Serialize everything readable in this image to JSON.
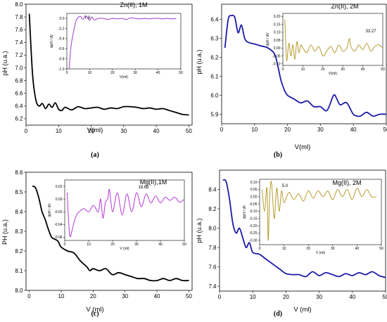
{
  "figure": {
    "labels": [
      "(a)",
      "(b)",
      "(c)",
      "(d)"
    ]
  },
  "chart_data": [
    {
      "type": "line",
      "panel_label": "(a)",
      "annotation": "Zn(II), 1M",
      "xlabel": "V(ml)",
      "ylabel": "pH (u.a.)",
      "xlim": [
        0,
        51
      ],
      "ylim": [
        6.1,
        8.0
      ],
      "xticks": [
        0,
        10,
        20,
        30,
        40,
        50
      ],
      "yticks": [
        6.2,
        6.4,
        6.6,
        6.8,
        7.0,
        7.2,
        7.4,
        7.6,
        7.8,
        8.0
      ],
      "color": "#000000",
      "x": [
        1,
        2,
        3,
        4,
        5,
        6,
        7,
        8,
        9,
        10,
        11,
        12,
        14,
        16,
        18,
        20,
        22,
        24,
        26,
        28,
        30,
        32,
        34,
        36,
        38,
        40,
        42,
        44,
        46,
        48,
        50
      ],
      "y": [
        7.85,
        6.9,
        6.5,
        6.4,
        6.44,
        6.36,
        6.43,
        6.38,
        6.45,
        6.35,
        6.33,
        6.38,
        6.34,
        6.39,
        6.36,
        6.37,
        6.38,
        6.35,
        6.37,
        6.36,
        6.39,
        6.39,
        6.38,
        6.36,
        6.37,
        6.35,
        6.36,
        6.33,
        6.3,
        6.27,
        6.26
      ],
      "inset": {
        "type": "line",
        "xlabel": "V(ml)",
        "ylabel": "dpH / dV",
        "annotation": "7.8",
        "xlim": [
          0,
          50
        ],
        "ylim": [
          -1.0,
          0.1
        ],
        "xticks": [
          0,
          10,
          20,
          30,
          40,
          50
        ],
        "yticks": [
          -1.0,
          -0.8,
          -0.6,
          -0.4,
          -0.2,
          0.0
        ],
        "color": "#a23bd1",
        "x": [
          1,
          1.5,
          2,
          3,
          4,
          5,
          6,
          7,
          8,
          9,
          10,
          11,
          12,
          14,
          16,
          18,
          20,
          22,
          24,
          26,
          28,
          30,
          32,
          34,
          36,
          38,
          40,
          42,
          44,
          46,
          48
        ],
        "y": [
          -1.0,
          -0.7,
          -0.5,
          -0.25,
          -0.05,
          0.02,
          0.04,
          -0.02,
          0.04,
          0.02,
          -0.04,
          0.03,
          -0.03,
          0.0,
          0.0,
          -0.02,
          0.0,
          -0.01,
          0.0,
          -0.02,
          0.01,
          0.0,
          -0.01,
          0.0,
          -0.01,
          0.0,
          0.0,
          -0.01,
          0.0,
          -0.01,
          0.0
        ]
      }
    },
    {
      "type": "line",
      "panel_label": "(b)",
      "annotation": "Zn(II), 2M",
      "xlabel": "V(ml)",
      "ylabel": "pH (u.a.)",
      "xlim": [
        0,
        50
      ],
      "ylim": [
        5.85,
        6.48
      ],
      "xticks": [
        0,
        10,
        20,
        30,
        40,
        50
      ],
      "yticks": [
        5.9,
        6.0,
        6.1,
        6.2,
        6.3,
        6.4
      ],
      "color": "#1a1aa8",
      "x": [
        1,
        2,
        3,
        4,
        5,
        6,
        7,
        8,
        10,
        12,
        14,
        16,
        17,
        18,
        19,
        20,
        22,
        24,
        26,
        28,
        30,
        32,
        34,
        35,
        36,
        38,
        40,
        42,
        44,
        46,
        48,
        50
      ],
      "y": [
        6.25,
        6.4,
        6.42,
        6.41,
        6.33,
        6.37,
        6.3,
        6.28,
        6.27,
        6.26,
        6.25,
        6.22,
        6.16,
        6.08,
        6.03,
        6.0,
        5.98,
        5.96,
        5.97,
        5.94,
        5.94,
        5.92,
        6.0,
        5.98,
        5.95,
        5.96,
        5.9,
        5.89,
        5.91,
        5.89,
        5.9,
        5.9
      ],
      "inset": {
        "type": "line",
        "xlabel": "V(ml)",
        "ylabel": "dpH / dV",
        "annotation": "33.27",
        "xlim": [
          0,
          50
        ],
        "ylim": [
          -0.11,
          0.22
        ],
        "xticks": [
          0,
          10,
          20,
          30,
          40,
          50
        ],
        "yticks": [
          -0.1,
          -0.05,
          0.0,
          0.05,
          0.1,
          0.15,
          0.2
        ],
        "color": "#b89a2e",
        "x": [
          1,
          1.5,
          2,
          3,
          4,
          5,
          6,
          7,
          8,
          9,
          10,
          12,
          14,
          16,
          18,
          20,
          22,
          24,
          26,
          28,
          30,
          32,
          33.27,
          34,
          36,
          38,
          40,
          42,
          44,
          46,
          48,
          50
        ],
        "y": [
          0.18,
          0.02,
          -0.08,
          0.03,
          -0.05,
          0.02,
          -0.07,
          0.04,
          -0.03,
          0.02,
          0.0,
          -0.03,
          0.02,
          -0.02,
          0.01,
          -0.05,
          -0.02,
          0.01,
          -0.03,
          0.02,
          -0.02,
          0.0,
          0.06,
          0.01,
          -0.02,
          0.02,
          -0.01,
          0.03,
          -0.02,
          0.01,
          0.02,
          0.0
        ]
      }
    },
    {
      "type": "line",
      "panel_label": "(c)",
      "annotation": "Mg(II),1M",
      "xlabel": "V (ml)",
      "ylabel": "PH (u.a.)",
      "xlim": [
        -1,
        51
      ],
      "ylim": [
        8.0,
        8.6
      ],
      "xticks": [
        0,
        10,
        20,
        30,
        40,
        50
      ],
      "yticks": [
        8.0,
        8.1,
        8.2,
        8.3,
        8.4,
        8.5,
        8.6
      ],
      "color": "#000000",
      "x": [
        1,
        2,
        3,
        4,
        5,
        6,
        7,
        8,
        9,
        10,
        12,
        14,
        16,
        18,
        19,
        20,
        22,
        24,
        26,
        28,
        30,
        32,
        34,
        36,
        38,
        40,
        42,
        44,
        46,
        48,
        50
      ],
      "y": [
        8.53,
        8.52,
        8.47,
        8.4,
        8.36,
        8.31,
        8.27,
        8.26,
        8.25,
        8.22,
        8.2,
        8.19,
        8.15,
        8.12,
        8.1,
        8.11,
        8.1,
        8.11,
        8.08,
        8.09,
        8.08,
        8.07,
        8.06,
        8.06,
        8.05,
        8.05,
        8.06,
        8.05,
        8.06,
        8.05,
        8.05
      ],
      "inset": {
        "type": "line",
        "xlabel": "V (ml)",
        "ylabel": "dpH / dV",
        "annotation": "18.68",
        "xlim": [
          0,
          50
        ],
        "ylim": [
          -0.065,
          0.03
        ],
        "xticks": [
          0,
          10,
          20,
          30,
          40,
          50
        ],
        "yticks": [
          -0.06,
          -0.04,
          -0.02,
          0.0,
          0.02
        ],
        "color": "#b535d8",
        "x": [
          1,
          2,
          3,
          4,
          5,
          6,
          8,
          10,
          12,
          14,
          15,
          16,
          17,
          18,
          18.68,
          20,
          22,
          24,
          26,
          28,
          30,
          32,
          34,
          36,
          38,
          40,
          42,
          44,
          46,
          48,
          50
        ],
        "y": [
          0.01,
          -0.055,
          -0.05,
          -0.035,
          -0.025,
          -0.02,
          -0.015,
          -0.02,
          -0.01,
          -0.02,
          0.0,
          -0.03,
          -0.005,
          0.0,
          0.015,
          -0.02,
          0.01,
          -0.025,
          0.008,
          -0.02,
          0.01,
          -0.012,
          0.008,
          -0.006,
          0.005,
          -0.006,
          0.003,
          -0.002,
          0.003,
          -0.005,
          0.0
        ]
      }
    },
    {
      "type": "line",
      "panel_label": "(d)",
      "annotation": "Mg(II), 2M",
      "xlabel": "V (ml)",
      "ylabel": "pH (u.a.)",
      "xlim": [
        0,
        50
      ],
      "ylim": [
        7.35,
        8.6
      ],
      "xticks": [
        0,
        10,
        20,
        30,
        40,
        50
      ],
      "yticks": [
        7.4,
        7.6,
        7.8,
        8.0,
        8.2,
        8.4
      ],
      "color": "#1a1aa8",
      "x": [
        1,
        2,
        3,
        4,
        5,
        6,
        7,
        8,
        9,
        10,
        12,
        14,
        16,
        18,
        20,
        22,
        24,
        26,
        28,
        30,
        32,
        34,
        36,
        38,
        40,
        42,
        44,
        46,
        48,
        50
      ],
      "y": [
        8.5,
        8.48,
        8.3,
        8.05,
        7.95,
        8.0,
        7.9,
        7.8,
        7.85,
        7.75,
        7.73,
        7.68,
        7.63,
        7.58,
        7.53,
        7.52,
        7.52,
        7.5,
        7.55,
        7.51,
        7.54,
        7.52,
        7.5,
        7.53,
        7.51,
        7.54,
        7.52,
        7.55,
        7.51,
        7.49
      ],
      "inset": {
        "type": "line",
        "xlabel": "V (ml)",
        "ylabel": "dpH / dV",
        "annotation": "5.0",
        "xlim": [
          0,
          50
        ],
        "ylim": [
          -0.33,
          0.12
        ],
        "xticks": [
          0,
          10,
          20,
          30,
          40,
          50
        ],
        "yticks": [
          -0.3,
          -0.25,
          -0.2,
          -0.15,
          -0.1,
          -0.05,
          0.0,
          0.05,
          0.1
        ],
        "color": "#b89a2e",
        "x": [
          1,
          2,
          3,
          3.5,
          4,
          4.5,
          5.0,
          6,
          7,
          8,
          9,
          10,
          12,
          14,
          16,
          18,
          20,
          22,
          24,
          26,
          28,
          30,
          32,
          34,
          36,
          38,
          40,
          42,
          44,
          46,
          48
        ],
        "y": [
          0.05,
          -0.1,
          0.06,
          -0.3,
          -0.05,
          0.09,
          0.08,
          -0.15,
          0.06,
          -0.1,
          0.04,
          -0.04,
          0.03,
          -0.02,
          0.02,
          -0.03,
          0.04,
          -0.01,
          0.04,
          0.0,
          0.04,
          -0.02,
          0.05,
          0.0,
          0.05,
          -0.02,
          0.06,
          0.0,
          0.05,
          0.0,
          0.0
        ]
      }
    }
  ]
}
